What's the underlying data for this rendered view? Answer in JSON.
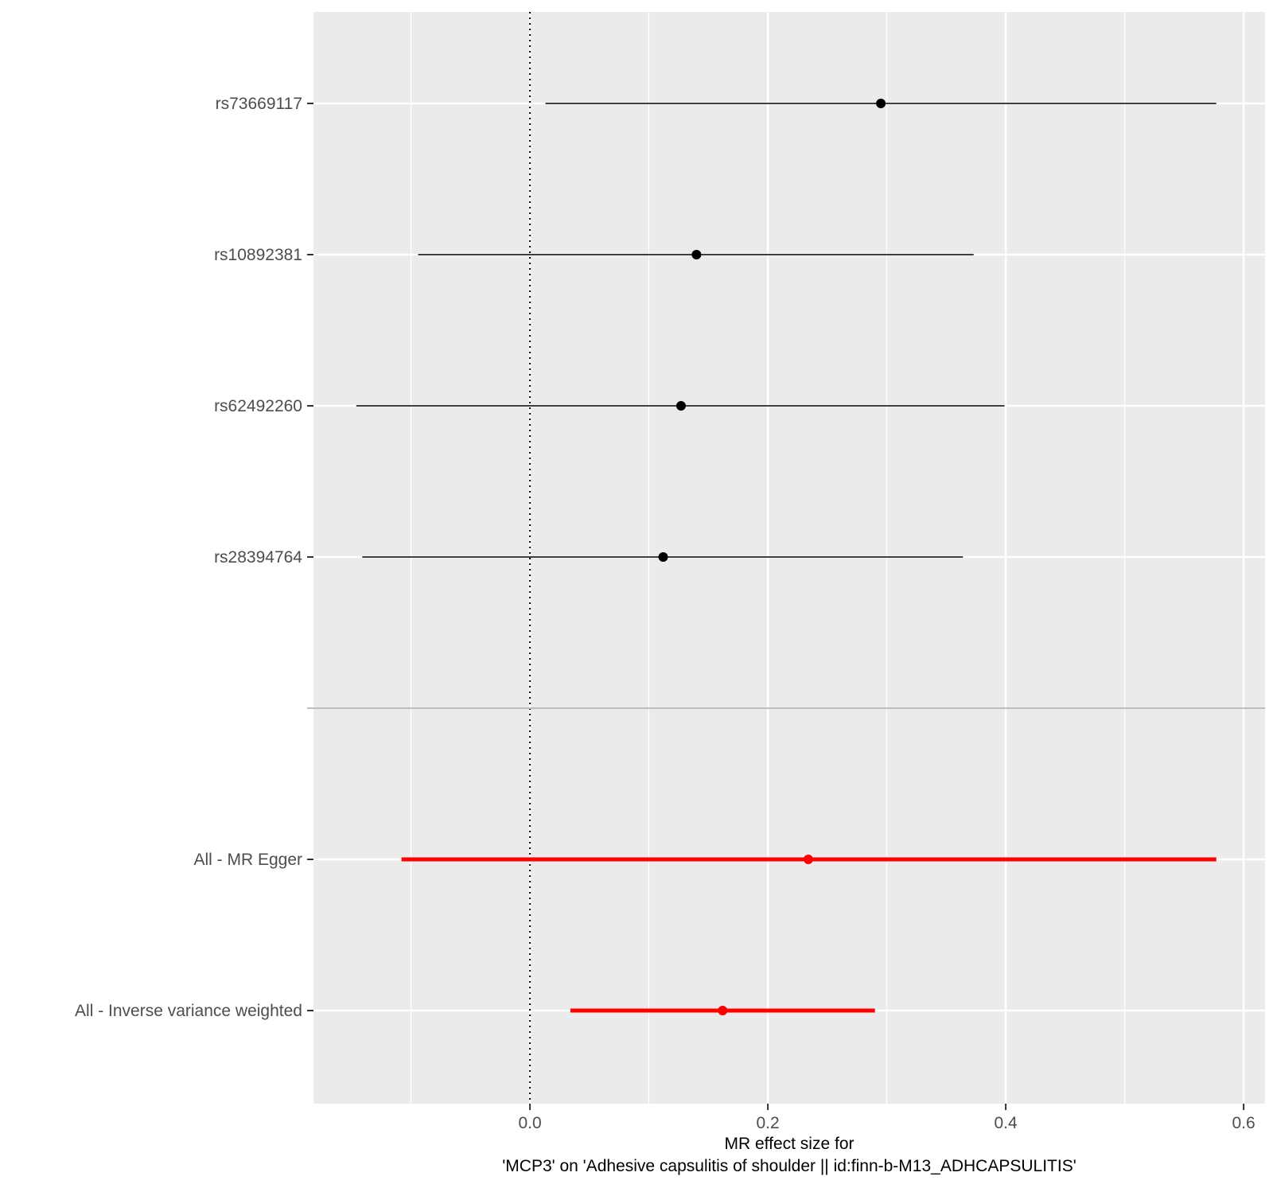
{
  "chart_data": {
    "type": "forest",
    "xlabel_line1": "MR effect size for",
    "xlabel_line2": "'MCP3' on 'Adhesive capsulitis of shoulder || id:finn-b-M13_ADHCAPSULITIS'",
    "xlim": [
      -0.182,
      0.618
    ],
    "x_ticks": [
      0.0,
      0.2,
      0.4,
      0.6
    ],
    "x_tick_labels": [
      "0.0",
      "0.2",
      "0.4",
      "0.6"
    ],
    "grid": true,
    "reference_line_x": 0,
    "rows": [
      {
        "label": "rs73669117",
        "estimate": 0.295,
        "lower": 0.013,
        "upper": 0.577,
        "group": "snp"
      },
      {
        "label": "rs10892381",
        "estimate": 0.14,
        "lower": -0.094,
        "upper": 0.373,
        "group": "snp"
      },
      {
        "label": "rs62492260",
        "estimate": 0.127,
        "lower": -0.146,
        "upper": 0.399,
        "group": "snp"
      },
      {
        "label": "rs28394764",
        "estimate": 0.112,
        "lower": -0.141,
        "upper": 0.364,
        "group": "snp"
      },
      {
        "label": "All - MR Egger",
        "estimate": 0.234,
        "lower": -0.108,
        "upper": 0.577,
        "group": "summary"
      },
      {
        "label": "All - Inverse variance weighted",
        "estimate": 0.162,
        "lower": 0.034,
        "upper": 0.29,
        "group": "summary"
      }
    ],
    "colors": {
      "panel_bg": "#ebebeb",
      "grid": "#ffffff",
      "snp": "#000000",
      "summary": "#ff0000",
      "separator": "#bebebe",
      "tick_text": "#4d4d4d"
    }
  }
}
